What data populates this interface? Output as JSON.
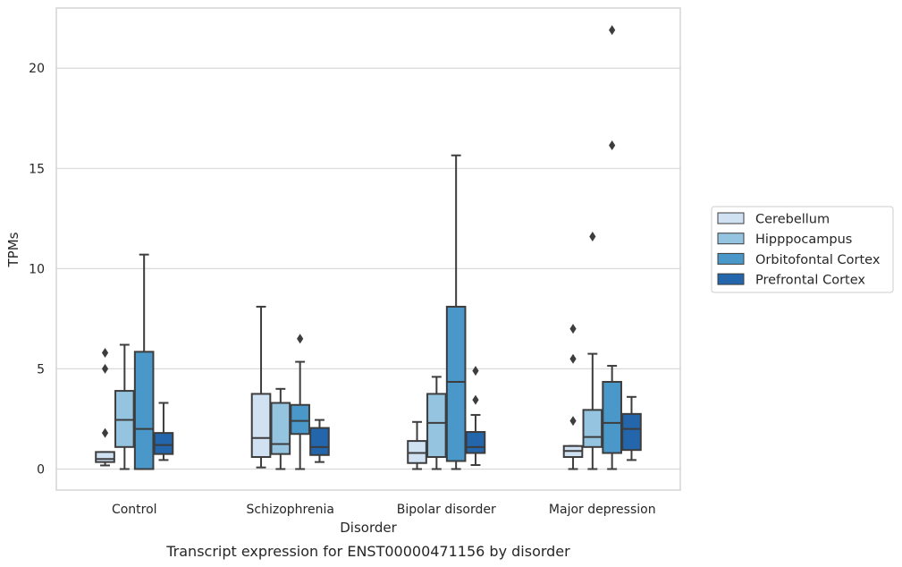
{
  "chart_data": {
    "type": "box",
    "title": "",
    "caption": "Transcript expression for ENST00000471156 by disorder",
    "xlabel": "Disorder",
    "ylabel": "TPMs",
    "ylim": [
      -1.05,
      23.0
    ],
    "yticks": [
      0,
      5,
      10,
      15,
      20
    ],
    "grid": "horizontal",
    "legend_position": "right",
    "categories": [
      "Control",
      "Schizophrenia",
      "Bipolar disorder",
      "Major depression"
    ],
    "series": [
      {
        "name": "Cerebellum",
        "color": "#d0e1f2",
        "boxes": [
          {
            "min": 0.18,
            "q1": 0.35,
            "median": 0.5,
            "q3": 0.85,
            "max": 0.85,
            "outliers": [
              1.8,
              5.0,
              5.8
            ]
          },
          {
            "min": 0.08,
            "q1": 0.6,
            "median": 1.55,
            "q3": 3.75,
            "max": 8.1,
            "outliers": []
          },
          {
            "min": 0.0,
            "q1": 0.3,
            "median": 0.8,
            "q3": 1.4,
            "max": 2.35,
            "outliers": []
          },
          {
            "min": 0.0,
            "q1": 0.6,
            "median": 0.9,
            "q3": 1.15,
            "max": 1.15,
            "outliers": [
              2.4,
              5.5,
              7.0
            ]
          }
        ]
      },
      {
        "name": "Hipppocampus",
        "color": "#94c4df",
        "boxes": [
          {
            "min": 0.0,
            "q1": 1.1,
            "median": 2.45,
            "q3": 3.9,
            "max": 6.2,
            "outliers": []
          },
          {
            "min": 0.0,
            "q1": 0.75,
            "median": 1.25,
            "q3": 3.3,
            "max": 4.0,
            "outliers": []
          },
          {
            "min": 0.0,
            "q1": 0.6,
            "median": 2.3,
            "q3": 3.75,
            "max": 4.6,
            "outliers": []
          },
          {
            "min": 0.0,
            "q1": 1.1,
            "median": 1.6,
            "q3": 2.95,
            "max": 5.75,
            "outliers": [
              11.6
            ]
          }
        ]
      },
      {
        "name": "Orbitofontal Cortex",
        "color": "#4a98c9",
        "boxes": [
          {
            "min": 0.0,
            "q1": 0.0,
            "median": 2.0,
            "q3": 5.85,
            "max": 10.7,
            "outliers": []
          },
          {
            "min": 0.0,
            "q1": 1.75,
            "median": 2.4,
            "q3": 3.2,
            "max": 5.35,
            "outliers": [
              6.5
            ]
          },
          {
            "min": 0.0,
            "q1": 0.4,
            "median": 4.35,
            "q3": 8.1,
            "max": 15.65,
            "outliers": []
          },
          {
            "min": 0.0,
            "q1": 0.8,
            "median": 2.3,
            "q3": 4.35,
            "max": 5.15,
            "outliers": [
              16.15,
              21.9
            ]
          }
        ]
      },
      {
        "name": "Prefrontal Cortex",
        "color": "#2366ac",
        "boxes": [
          {
            "min": 0.45,
            "q1": 0.75,
            "median": 1.2,
            "q3": 1.8,
            "max": 3.3,
            "outliers": []
          },
          {
            "min": 0.35,
            "q1": 0.7,
            "median": 1.1,
            "q3": 2.05,
            "max": 2.45,
            "outliers": []
          },
          {
            "min": 0.2,
            "q1": 0.8,
            "median": 1.1,
            "q3": 1.85,
            "max": 2.7,
            "outliers": [
              3.45,
              4.9
            ]
          },
          {
            "min": 0.45,
            "q1": 0.95,
            "median": 2.0,
            "q3": 2.75,
            "max": 3.6,
            "outliers": []
          }
        ]
      }
    ]
  }
}
